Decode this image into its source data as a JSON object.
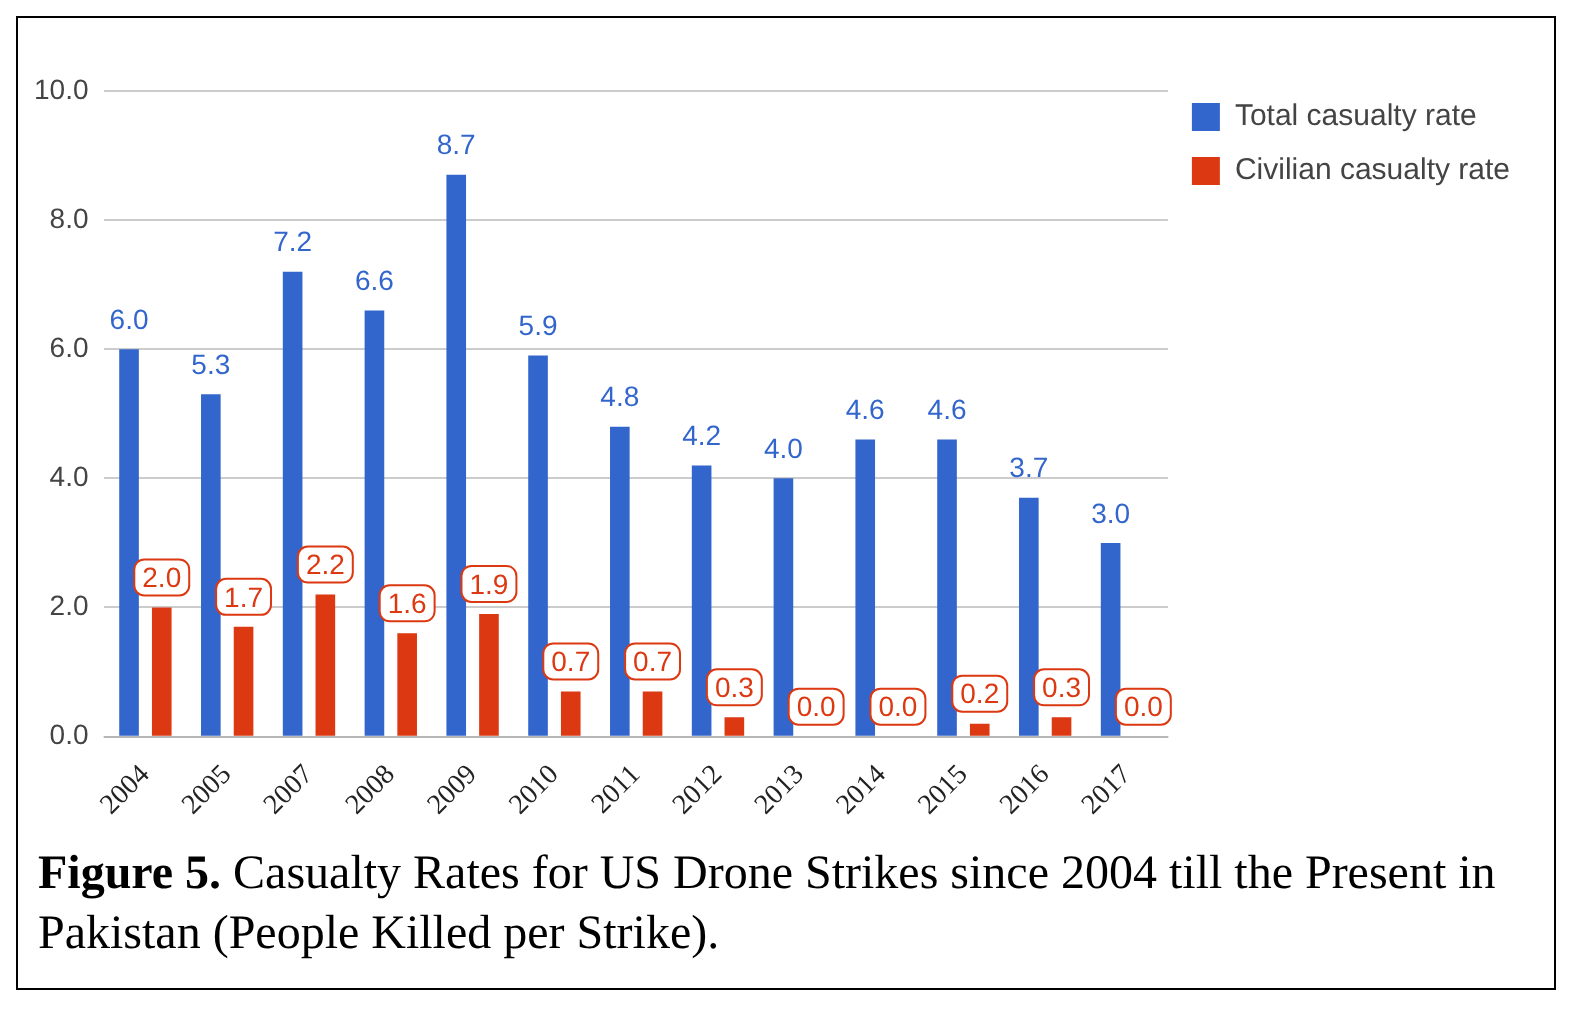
{
  "chart_data": {
    "type": "bar",
    "categories": [
      "2004",
      "2005",
      "2007",
      "2008",
      "2009",
      "2010",
      "2011",
      "2012",
      "2013",
      "2014",
      "2015",
      "2016",
      "2017"
    ],
    "series": [
      {
        "name": "Total casualty rate",
        "color": "#3366cc",
        "values": [
          6.0,
          5.3,
          7.2,
          6.6,
          8.7,
          5.9,
          4.8,
          4.2,
          4.0,
          4.6,
          4.6,
          3.7,
          3.0
        ],
        "value_labels": [
          "6.0",
          "5.3",
          "7.2",
          "6.6",
          "8.7",
          "5.9",
          "4.8",
          "4.2",
          "4.0",
          "4.6",
          "4.6",
          "3.7",
          "3.0"
        ]
      },
      {
        "name": "Civilian casualty rate",
        "color": "#dc3912",
        "values": [
          2.0,
          1.7,
          2.2,
          1.6,
          1.9,
          0.7,
          0.7,
          0.3,
          0.0,
          0.0,
          0.2,
          0.3,
          0.0
        ],
        "value_labels": [
          "2.0",
          "1.7",
          "2.2",
          "1.6",
          "1.9",
          "0.7",
          "0.7",
          "0.3",
          "0.0",
          "0.0",
          "0.2",
          "0.3",
          "0.0"
        ]
      }
    ],
    "ylim": [
      0,
      10
    ],
    "yticks": [
      {
        "value": 0,
        "label": "0.0"
      },
      {
        "value": 2,
        "label": "2.0"
      },
      {
        "value": 4,
        "label": "4.0"
      },
      {
        "value": 6,
        "label": "6.0"
      },
      {
        "value": 8,
        "label": "8.0"
      },
      {
        "value": 10,
        "label": "10.0"
      }
    ],
    "grid": "y",
    "legend": "top right",
    "annotations": [
      "Figure 5.",
      "Casualty Rates for US Drone Strikes since 2004 till the Present in Pakistan (People Killed per Strike)."
    ]
  }
}
